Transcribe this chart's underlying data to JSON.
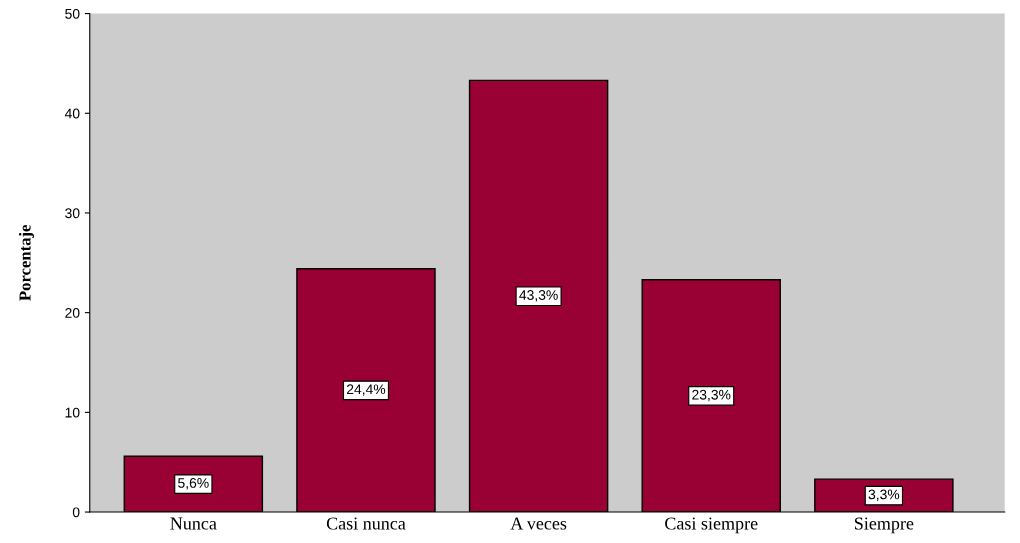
{
  "chart_data": {
    "type": "bar",
    "ylabel": "Porcentaje",
    "categories": [
      "Nunca",
      "Casi nunca",
      "A veces",
      "Casi siempre",
      "Siempre"
    ],
    "values": [
      5.6,
      24.4,
      43.3,
      23.3,
      3.3
    ],
    "value_labels": [
      "5,6%",
      "24,4%",
      "43,3%",
      "23,3%",
      "3,3%"
    ],
    "color": "#990033",
    "ylim": [
      0,
      50
    ],
    "yticks": [
      0,
      10,
      20,
      30,
      40,
      50
    ],
    "grid": false
  }
}
